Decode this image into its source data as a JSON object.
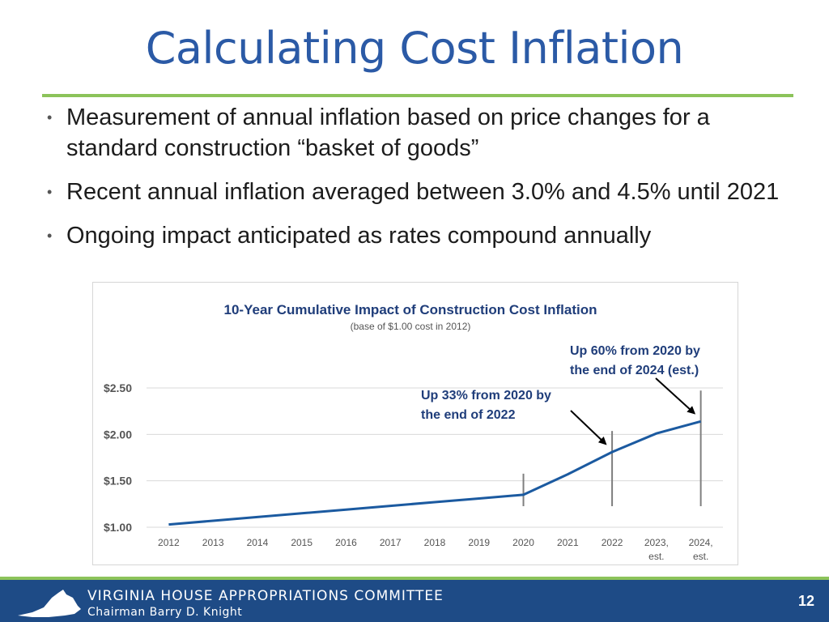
{
  "slide": {
    "title": "Calculating Cost Inflation",
    "bullets": [
      "Measurement of annual inflation based on price changes for a standard construction “basket of goods”",
      "Recent annual inflation averaged between 3.0% and 4.5% until 2021",
      "Ongoing impact anticipated as rates compound annually"
    ]
  },
  "chart_data": {
    "type": "line",
    "title": "10-Year Cumulative Impact of Construction Cost Inflation",
    "subtitle": "(base of $1.00 cost in 2012)",
    "categories": [
      "2012",
      "2013",
      "2014",
      "2015",
      "2016",
      "2017",
      "2018",
      "2019",
      "2020",
      "2021",
      "2022",
      "2023, est.",
      "2024, est."
    ],
    "values": [
      1.03,
      1.07,
      1.11,
      1.15,
      1.19,
      1.23,
      1.27,
      1.31,
      1.35,
      1.57,
      1.81,
      2.01,
      2.14
    ],
    "y_ticks": [
      "$1.00",
      "$1.50",
      "$2.00",
      "$2.50"
    ],
    "ylim": [
      1.0,
      2.5
    ],
    "grid": true,
    "line_color": "#1b5aa0",
    "marker_years": [
      "2020",
      "2022",
      "2024, est."
    ],
    "annotations": [
      {
        "text": "Up 33% from 2020 by the end of 2022",
        "lines": [
          "Up 33% from 2020 by",
          "the end of 2022"
        ],
        "target": "2022"
      },
      {
        "text": "Up 60% from 2020 by the end of 2024 (est.)",
        "lines": [
          "Up 60% from 2020 by",
          "the end of 2024 (est.)"
        ],
        "target": "2024, est."
      }
    ]
  },
  "footer": {
    "org": "VIRGINIA HOUSE APPROPRIATIONS COMMITTEE",
    "chair": "Chairman Barry D. Knight",
    "page_number": "12"
  },
  "colors": {
    "title": "#2b5aa6",
    "rule": "#8cc35a",
    "footer_bg": "#1e4b86",
    "annotation": "#1f3d7a"
  }
}
